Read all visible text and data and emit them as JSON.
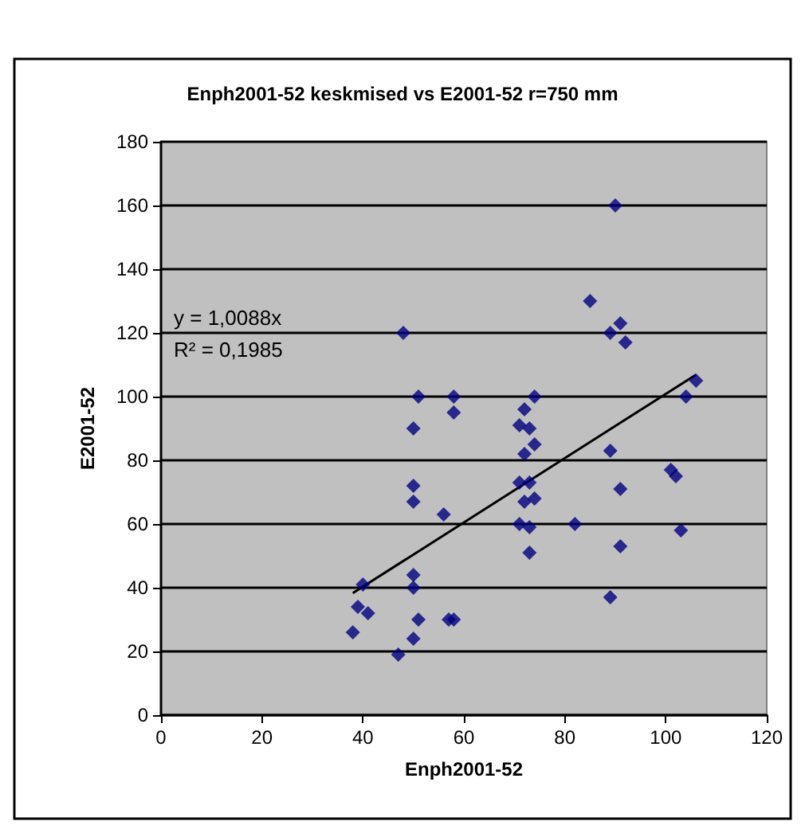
{
  "chart_data": {
    "type": "scatter",
    "title": "Enph2001-52 keskmised vs E2001-52 r=750 mm",
    "xlabel": "Enph2001-52",
    "ylabel": "E2001-52",
    "xlim": [
      0,
      120
    ],
    "xticks": [
      0,
      20,
      40,
      60,
      80,
      100,
      120
    ],
    "ylim": [
      0,
      180
    ],
    "yticks": [
      0,
      20,
      40,
      60,
      80,
      100,
      120,
      140,
      160,
      180
    ],
    "grid": "y",
    "marker": "diamond",
    "annotations": [
      "y = 1,0088x",
      "R² = 0,1985"
    ],
    "series": [
      {
        "color": "#000080",
        "x": [
          38,
          39,
          40,
          41,
          47,
          48,
          50,
          50,
          50,
          50,
          50,
          50,
          51,
          51,
          56,
          57,
          58,
          58,
          58,
          71,
          71,
          71,
          72,
          72,
          72,
          73,
          73,
          73,
          73,
          74,
          74,
          74,
          82,
          85,
          89,
          89,
          89,
          90,
          91,
          91,
          91,
          92,
          101,
          102,
          103,
          104,
          106
        ],
        "values": [
          26,
          34,
          41,
          32,
          19,
          120,
          90,
          72,
          67,
          44,
          40,
          24,
          100,
          30,
          63,
          30,
          30,
          100,
          95,
          91,
          73,
          60,
          96,
          82,
          67,
          90,
          73,
          59,
          51,
          100,
          85,
          68,
          60,
          130,
          120,
          83,
          37,
          160,
          123,
          71,
          53,
          117,
          77,
          75,
          58,
          100,
          105
        ]
      },
      {
        "type": "line",
        "color": "#000000",
        "x": [
          38,
          106
        ],
        "values": [
          38.3,
          106.9
        ],
        "marker": "none"
      }
    ]
  }
}
